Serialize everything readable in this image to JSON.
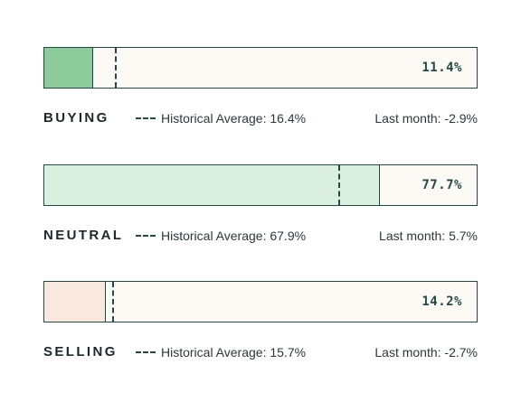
{
  "rows": [
    {
      "label": "BUYING",
      "value_pct": 11.4,
      "value_label": "11.4%",
      "avg_pct": 16.4,
      "avg_label": "Historical Average: 16.4%",
      "last_month_label": "Last month: -2.9%",
      "fill_color": "#8ecb9c"
    },
    {
      "label": "NEUTRAL",
      "value_pct": 77.7,
      "value_label": "77.7%",
      "avg_pct": 67.9,
      "avg_label": "Historical Average: 67.9%",
      "last_month_label": "Last month: 5.7%",
      "fill_color": "#dbf0e0"
    },
    {
      "label": "SELLING",
      "value_pct": 14.2,
      "value_label": "14.2%",
      "avg_pct": 15.7,
      "avg_label": "Historical Average: 15.7%",
      "last_month_label": "Last month: -2.7%",
      "fill_color": "#f8e8dd"
    }
  ],
  "colors": {
    "bar_background": "#fdf9f5",
    "accent": "#1f4a45"
  },
  "chart_data": {
    "type": "bar",
    "orientation": "horizontal",
    "categories": [
      "BUYING",
      "NEUTRAL",
      "SELLING"
    ],
    "values": [
      11.4,
      77.7,
      14.2
    ],
    "reference": {
      "values": [
        16.4,
        67.9,
        15.7
      ]
    },
    "last_month_change": [
      -2.9,
      5.7,
      -2.7
    ],
    "xlim": [
      0,
      100
    ],
    "grid": false
  }
}
